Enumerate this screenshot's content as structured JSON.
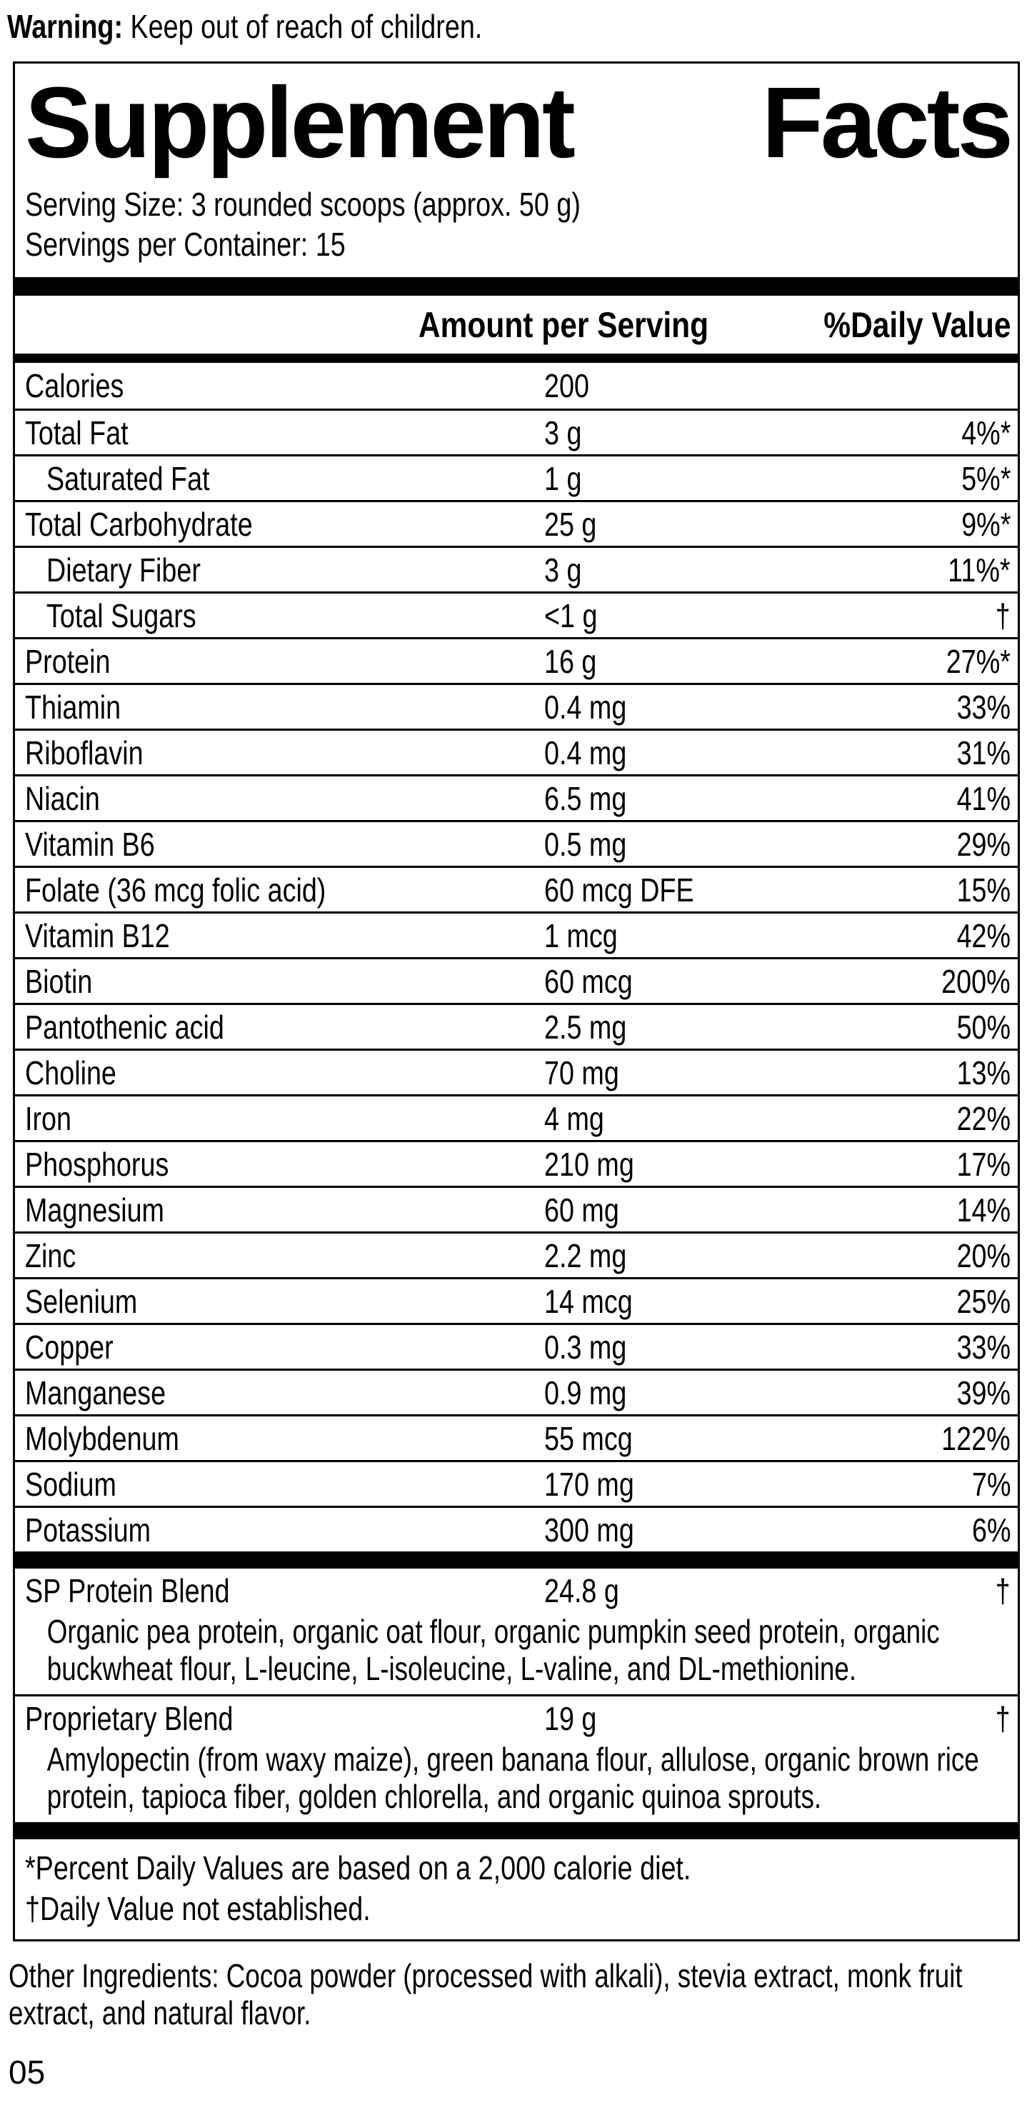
{
  "warning": {
    "prefix": "Warning:",
    "rest": " Keep out of reach of children."
  },
  "panel": {
    "title_left": "Supplement",
    "title_right": "Facts",
    "serving_size": "Serving Size: 3 rounded scoops (approx. 50 g)",
    "servings_per_container": "Servings per Container: 15",
    "columns": {
      "amount": "Amount per Serving",
      "dv": "%Daily Value"
    },
    "rows": [
      {
        "label": "Calories",
        "amount": "200",
        "dv": "",
        "indent": false
      },
      {
        "label": "Total Fat",
        "amount": "3 g",
        "dv": "4%*",
        "indent": false
      },
      {
        "label": "Saturated Fat",
        "amount": "1 g",
        "dv": "5%*",
        "indent": true
      },
      {
        "label": "Total Carbohydrate",
        "amount": "25 g",
        "dv": "9%*",
        "indent": false
      },
      {
        "label": "Dietary Fiber",
        "amount": "3 g",
        "dv": "11%*",
        "indent": true
      },
      {
        "label": "Total Sugars",
        "amount": "<1 g",
        "dv": "†",
        "indent": true
      },
      {
        "label": "Protein",
        "amount": "16 g",
        "dv": "27%*",
        "indent": false
      },
      {
        "label": "Thiamin",
        "amount": "0.4 mg",
        "dv": "33%",
        "indent": false
      },
      {
        "label": "Riboflavin",
        "amount": "0.4 mg",
        "dv": "31%",
        "indent": false
      },
      {
        "label": "Niacin",
        "amount": "6.5 mg",
        "dv": "41%",
        "indent": false
      },
      {
        "label": "Vitamin B6",
        "amount": "0.5 mg",
        "dv": "29%",
        "indent": false
      },
      {
        "label": "Folate (36 mcg folic acid)",
        "amount": "60 mcg DFE",
        "dv": "15%",
        "indent": false
      },
      {
        "label": "Vitamin B12",
        "amount": "1 mcg",
        "dv": "42%",
        "indent": false
      },
      {
        "label": "Biotin",
        "amount": "60 mcg",
        "dv": "200%",
        "indent": false
      },
      {
        "label": "Pantothenic acid",
        "amount": "2.5 mg",
        "dv": "50%",
        "indent": false
      },
      {
        "label": "Choline",
        "amount": "70 mg",
        "dv": "13%",
        "indent": false
      },
      {
        "label": "Iron",
        "amount": "4 mg",
        "dv": "22%",
        "indent": false
      },
      {
        "label": "Phosphorus",
        "amount": "210 mg",
        "dv": "17%",
        "indent": false
      },
      {
        "label": "Magnesium",
        "amount": "60 mg",
        "dv": "14%",
        "indent": false
      },
      {
        "label": "Zinc",
        "amount": "2.2 mg",
        "dv": "20%",
        "indent": false
      },
      {
        "label": "Selenium",
        "amount": "14 mcg",
        "dv": "25%",
        "indent": false
      },
      {
        "label": "Copper",
        "amount": "0.3 mg",
        "dv": "33%",
        "indent": false
      },
      {
        "label": "Manganese",
        "amount": "0.9 mg",
        "dv": "39%",
        "indent": false
      },
      {
        "label": "Molybdenum",
        "amount": "55 mcg",
        "dv": "122%",
        "indent": false
      },
      {
        "label": "Sodium",
        "amount": "170 mg",
        "dv": "7%",
        "indent": false
      },
      {
        "label": "Potassium",
        "amount": "300 mg",
        "dv": "6%",
        "indent": false
      }
    ],
    "blends": [
      {
        "label": "SP Protein Blend",
        "amount": "24.8 g",
        "dv": "†",
        "description": "Organic pea protein, organic oat flour, organic pumpkin seed protein, organic buckwheat flour, L-leucine, L-isoleucine, L-valine, and DL-methionine."
      },
      {
        "label": "Proprietary Blend",
        "amount": "19 g",
        "dv": "†",
        "description": "Amylopectin (from waxy maize), green banana flour, allulose, organic brown rice protein, tapioca fiber, golden chlorella, and organic quinoa sprouts."
      }
    ],
    "footnotes": [
      "*Percent Daily Values are based on a 2,000 calorie diet.",
      "†Daily Value not established."
    ]
  },
  "other_ingredients": "Other Ingredients: Cocoa powder (processed with alkali), stevia extract, monk fruit extract, and natural flavor.",
  "page_number": "05",
  "colors": {
    "ink": "#000000",
    "paper": "#ffffff"
  }
}
